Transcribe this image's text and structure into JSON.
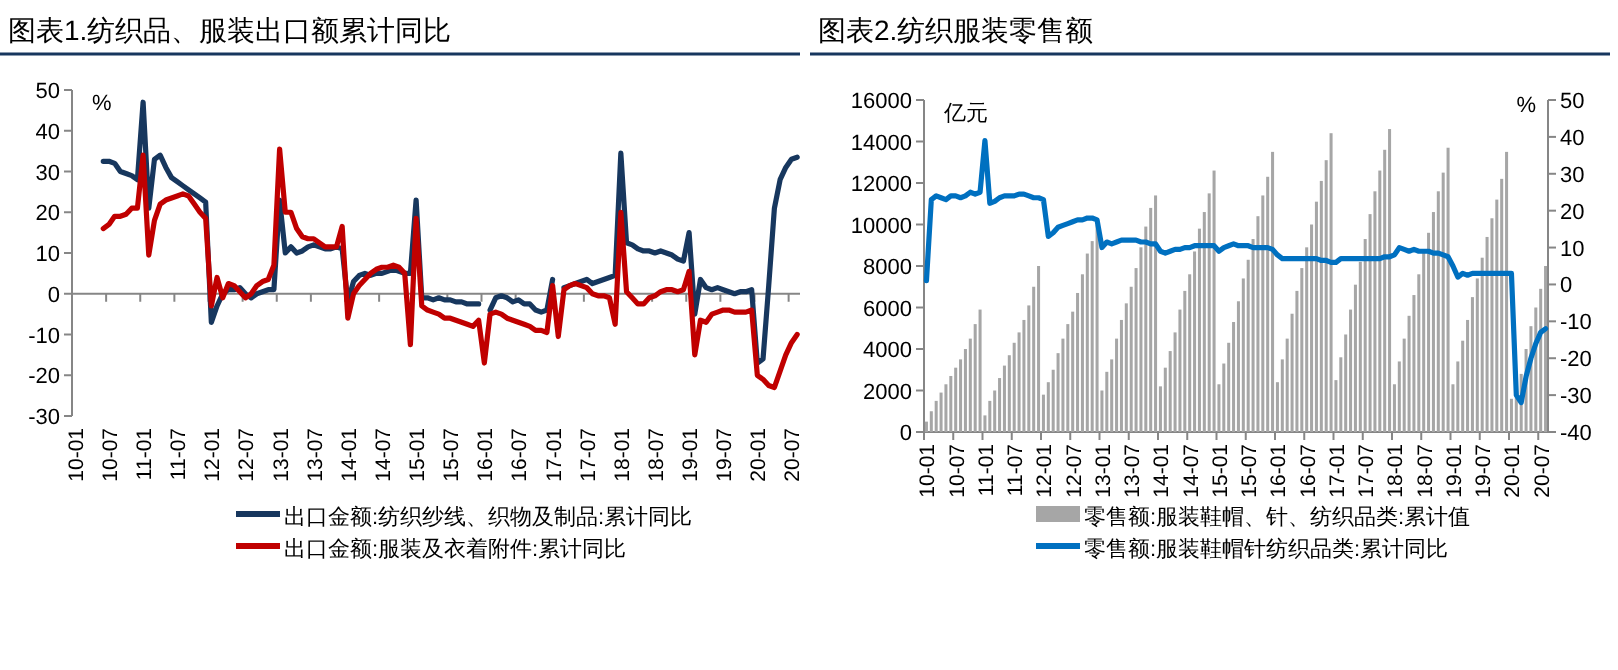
{
  "chart_data": [
    {
      "type": "line",
      "title": "图表1.纺织品、服装出口额累计同比",
      "ylabel": "%",
      "legend": "bottom",
      "ylim": [
        -30,
        50
      ],
      "yticks": [
        -30,
        -20,
        -10,
        0,
        10,
        20,
        30,
        40,
        50
      ],
      "categories": [
        "10-01",
        null,
        null,
        null,
        null,
        null,
        "10-07",
        null,
        null,
        null,
        null,
        null,
        "11-01",
        null,
        null,
        null,
        null,
        null,
        "11-07",
        null,
        null,
        null,
        null,
        null,
        "12-01",
        null,
        null,
        null,
        null,
        null,
        "12-07",
        null,
        null,
        null,
        null,
        null,
        "13-01",
        null,
        null,
        null,
        null,
        null,
        "13-07",
        null,
        null,
        null,
        null,
        null,
        "14-01",
        null,
        null,
        null,
        null,
        null,
        "14-07",
        null,
        null,
        null,
        null,
        null,
        "15-01",
        null,
        null,
        null,
        null,
        null,
        "15-07",
        null,
        null,
        null,
        null,
        null,
        "16-01",
        null,
        null,
        null,
        null,
        null,
        "16-07",
        null,
        null,
        null,
        null,
        null,
        "17-01",
        null,
        null,
        null,
        null,
        null,
        "17-07",
        null,
        null,
        null,
        null,
        null,
        "18-01",
        null,
        null,
        null,
        null,
        null,
        "18-07",
        null,
        null,
        null,
        null,
        null,
        "19-01",
        null,
        null,
        null,
        null,
        null,
        "19-07",
        null,
        null,
        null,
        null,
        null,
        "20-01",
        null,
        null,
        null,
        null,
        null,
        "20-07",
        null
      ],
      "series": [
        {
          "name": "出口金额:纺织纱线、织物及制品:累计同比",
          "color": "#17375e",
          "values": [
            null,
            null,
            null,
            null,
            null,
            32.5,
            32.5,
            32,
            30,
            29.5,
            29,
            28,
            47,
            21,
            33,
            34,
            31,
            28.5,
            27.5,
            26.5,
            25.5,
            24.5,
            23.5,
            22.5,
            -7,
            -3,
            0,
            1,
            1,
            1.5,
            0,
            -1,
            0,
            0.5,
            1,
            1,
            23,
            10,
            11.5,
            10,
            10.5,
            11.5,
            12,
            11.5,
            11,
            11,
            11.5,
            11,
            -2,
            3,
            4.5,
            5,
            4.5,
            5,
            5,
            5.5,
            6,
            5.5,
            5,
            5,
            23,
            -1,
            -1,
            -1.5,
            -1,
            -1.5,
            -1.5,
            -2,
            -2,
            -2.5,
            -2.5,
            -2.5,
            null,
            -4,
            -1,
            -0.5,
            -1,
            -2,
            -1.5,
            -2.5,
            -2.5,
            -4,
            -4.5,
            -4,
            3.5,
            null,
            1.5,
            2,
            2.5,
            3,
            3.5,
            2.5,
            3,
            3.5,
            4,
            4.5,
            34.5,
            12.5,
            12,
            11,
            10.5,
            10.5,
            10,
            10.5,
            10,
            9.5,
            8.5,
            8,
            15,
            -5,
            3.5,
            1.5,
            1,
            1.5,
            1,
            0.5,
            0,
            0.5,
            0.5,
            1,
            -17,
            -16,
            2,
            21,
            28,
            31,
            33,
            33.5
          ]
        },
        {
          "name": "出口金额:服装及衣着附件:累计同比",
          "color": "#c00000",
          "values": [
            null,
            null,
            null,
            null,
            null,
            16,
            17,
            19,
            19,
            19.5,
            21,
            21,
            34,
            9.5,
            18,
            22,
            23,
            23.5,
            24,
            24.5,
            24,
            22,
            20,
            18.5,
            -3,
            4,
            -1,
            2.5,
            2,
            0.5,
            -1,
            0,
            2,
            3,
            3.5,
            7,
            35.5,
            20,
            20,
            16,
            14,
            13.5,
            13.5,
            12.5,
            11.5,
            11.5,
            11.5,
            16.5,
            -6,
            0,
            2,
            3.5,
            5,
            6,
            6.5,
            6.5,
            7,
            6.5,
            5,
            -12.5,
            18.5,
            -3,
            -4,
            -4.5,
            -5,
            -6,
            -6,
            -6.5,
            -7,
            -7.5,
            -8,
            -6.5,
            -17,
            -5,
            -4.5,
            -5,
            -6,
            -6.5,
            -7,
            -7.5,
            -8,
            -9,
            -9,
            -9.5,
            2,
            -10.5,
            1,
            2,
            2.5,
            2,
            1.5,
            0,
            -0.5,
            -0.5,
            -1,
            -7.5,
            20,
            0.5,
            -1,
            -2.5,
            -2.5,
            -1,
            -0.5,
            0.5,
            1,
            1,
            0.5,
            1,
            5.5,
            -15,
            -6.5,
            -7,
            -5,
            -4.5,
            -4,
            -4,
            -4.5,
            -4.5,
            -4.5,
            -4,
            -20,
            -21,
            -22.5,
            -23,
            -19,
            -15,
            -12,
            -10
          ]
        }
      ]
    },
    {
      "type": "bar",
      "title": "图表2.纺织服装零售额",
      "ylabel": "亿元",
      "y2label": "%",
      "legend": "bottom",
      "ylim": [
        0,
        16000
      ],
      "yticks": [
        0,
        2000,
        4000,
        6000,
        8000,
        10000,
        12000,
        14000,
        16000
      ],
      "y2lim": [
        -40,
        50
      ],
      "y2ticks": [
        -40,
        -30,
        -20,
        -10,
        0,
        10,
        20,
        30,
        40,
        50
      ],
      "categories": [
        "10-01",
        null,
        null,
        null,
        null,
        null,
        "10-07",
        null,
        null,
        null,
        null,
        null,
        "11-01",
        null,
        null,
        null,
        null,
        null,
        "11-07",
        null,
        null,
        null,
        null,
        null,
        "12-01",
        null,
        null,
        null,
        null,
        null,
        "12-07",
        null,
        null,
        null,
        null,
        null,
        "13-01",
        null,
        null,
        null,
        null,
        null,
        "13-07",
        null,
        null,
        null,
        null,
        null,
        "14-01",
        null,
        null,
        null,
        null,
        null,
        "14-07",
        null,
        null,
        null,
        null,
        null,
        "15-01",
        null,
        null,
        null,
        null,
        null,
        "15-07",
        null,
        null,
        null,
        null,
        null,
        "16-01",
        null,
        null,
        null,
        null,
        null,
        "16-07",
        null,
        null,
        null,
        null,
        null,
        "17-01",
        null,
        null,
        null,
        null,
        null,
        "17-07",
        null,
        null,
        null,
        null,
        null,
        "18-01",
        null,
        null,
        null,
        null,
        null,
        "18-07",
        null,
        null,
        null,
        null,
        null,
        "19-01",
        null,
        null,
        null,
        null,
        null,
        "19-07",
        null,
        null,
        null,
        null,
        null,
        "20-01",
        null,
        null,
        null,
        null,
        null,
        "20-07",
        null
      ],
      "series": [
        {
          "name": "零售额:服装鞋帽、针、纺织品类:累计值",
          "color": "#a6a6a6",
          "values": [
            500,
            1000,
            1500,
            1900,
            2300,
            2700,
            3100,
            3500,
            4000,
            4500,
            5200,
            5900,
            800,
            1500,
            2000,
            2600,
            3200,
            3700,
            4300,
            4800,
            5400,
            6100,
            7000,
            8000,
            1800,
            2400,
            3000,
            3800,
            4500,
            5200,
            5800,
            6700,
            7600,
            8600,
            9200,
            10000,
            2000,
            2900,
            3500,
            4500,
            5400,
            6200,
            7000,
            7900,
            8900,
            9900,
            10800,
            11400,
            2200,
            3100,
            3900,
            4800,
            5900,
            6800,
            7600,
            8700,
            9800,
            10600,
            11500,
            12600,
            2300,
            3300,
            4300,
            5300,
            6300,
            7400,
            8300,
            9300,
            10400,
            11400,
            12300,
            13500,
            2400,
            3500,
            4500,
            5700,
            6800,
            7900,
            8900,
            10000,
            11100,
            12100,
            13100,
            14400,
            2500,
            3600,
            4700,
            5900,
            7100,
            8200,
            9300,
            10500,
            11600,
            12600,
            13600,
            14600,
            2300,
            3400,
            4500,
            5600,
            6600,
            7600,
            8700,
            9600,
            10600,
            11600,
            12500,
            13700,
            2300,
            3400,
            4400,
            5400,
            6500,
            7400,
            8400,
            9400,
            10300,
            11200,
            12200,
            13500,
            1600,
            2000,
            2800,
            4000,
            5100,
            6000,
            6900,
            8000
          ]
        },
        {
          "name": "零售额:服装鞋帽针纺织品类:累计同比",
          "color": "#0070c0",
          "type": "line",
          "axis": "y2",
          "values": [
            1,
            23,
            24,
            23.5,
            23,
            24,
            24,
            23.5,
            24,
            25,
            24.5,
            25,
            39,
            22,
            22.5,
            23.5,
            24,
            24,
            24,
            24.5,
            24.5,
            24,
            23.5,
            23.5,
            23,
            13,
            14,
            15.5,
            16,
            16.5,
            17,
            17.5,
            17.5,
            18,
            18,
            17.5,
            10,
            11.5,
            11,
            11.5,
            12,
            12,
            12,
            12,
            11.5,
            11.5,
            11,
            11,
            9,
            8.5,
            9,
            9.5,
            9.5,
            10,
            10,
            10.5,
            10.5,
            10.5,
            10.5,
            10.5,
            9,
            10,
            10.5,
            11,
            10.5,
            10.5,
            10.5,
            10,
            10,
            10,
            10,
            9.5,
            8,
            7,
            7,
            7,
            7,
            7,
            7,
            7,
            7,
            6.5,
            6.5,
            6,
            6,
            7,
            7,
            7,
            7,
            7,
            7,
            7,
            7,
            7,
            7.5,
            7.5,
            8,
            10,
            9.5,
            9,
            9.5,
            9,
            9,
            9,
            8.5,
            8.5,
            8,
            7.5,
            5,
            2,
            3,
            2.5,
            3,
            3,
            3,
            3,
            3,
            3,
            3,
            3,
            3,
            -30,
            -32,
            -25,
            -20,
            -16,
            -13,
            -12
          ]
        }
      ]
    }
  ]
}
